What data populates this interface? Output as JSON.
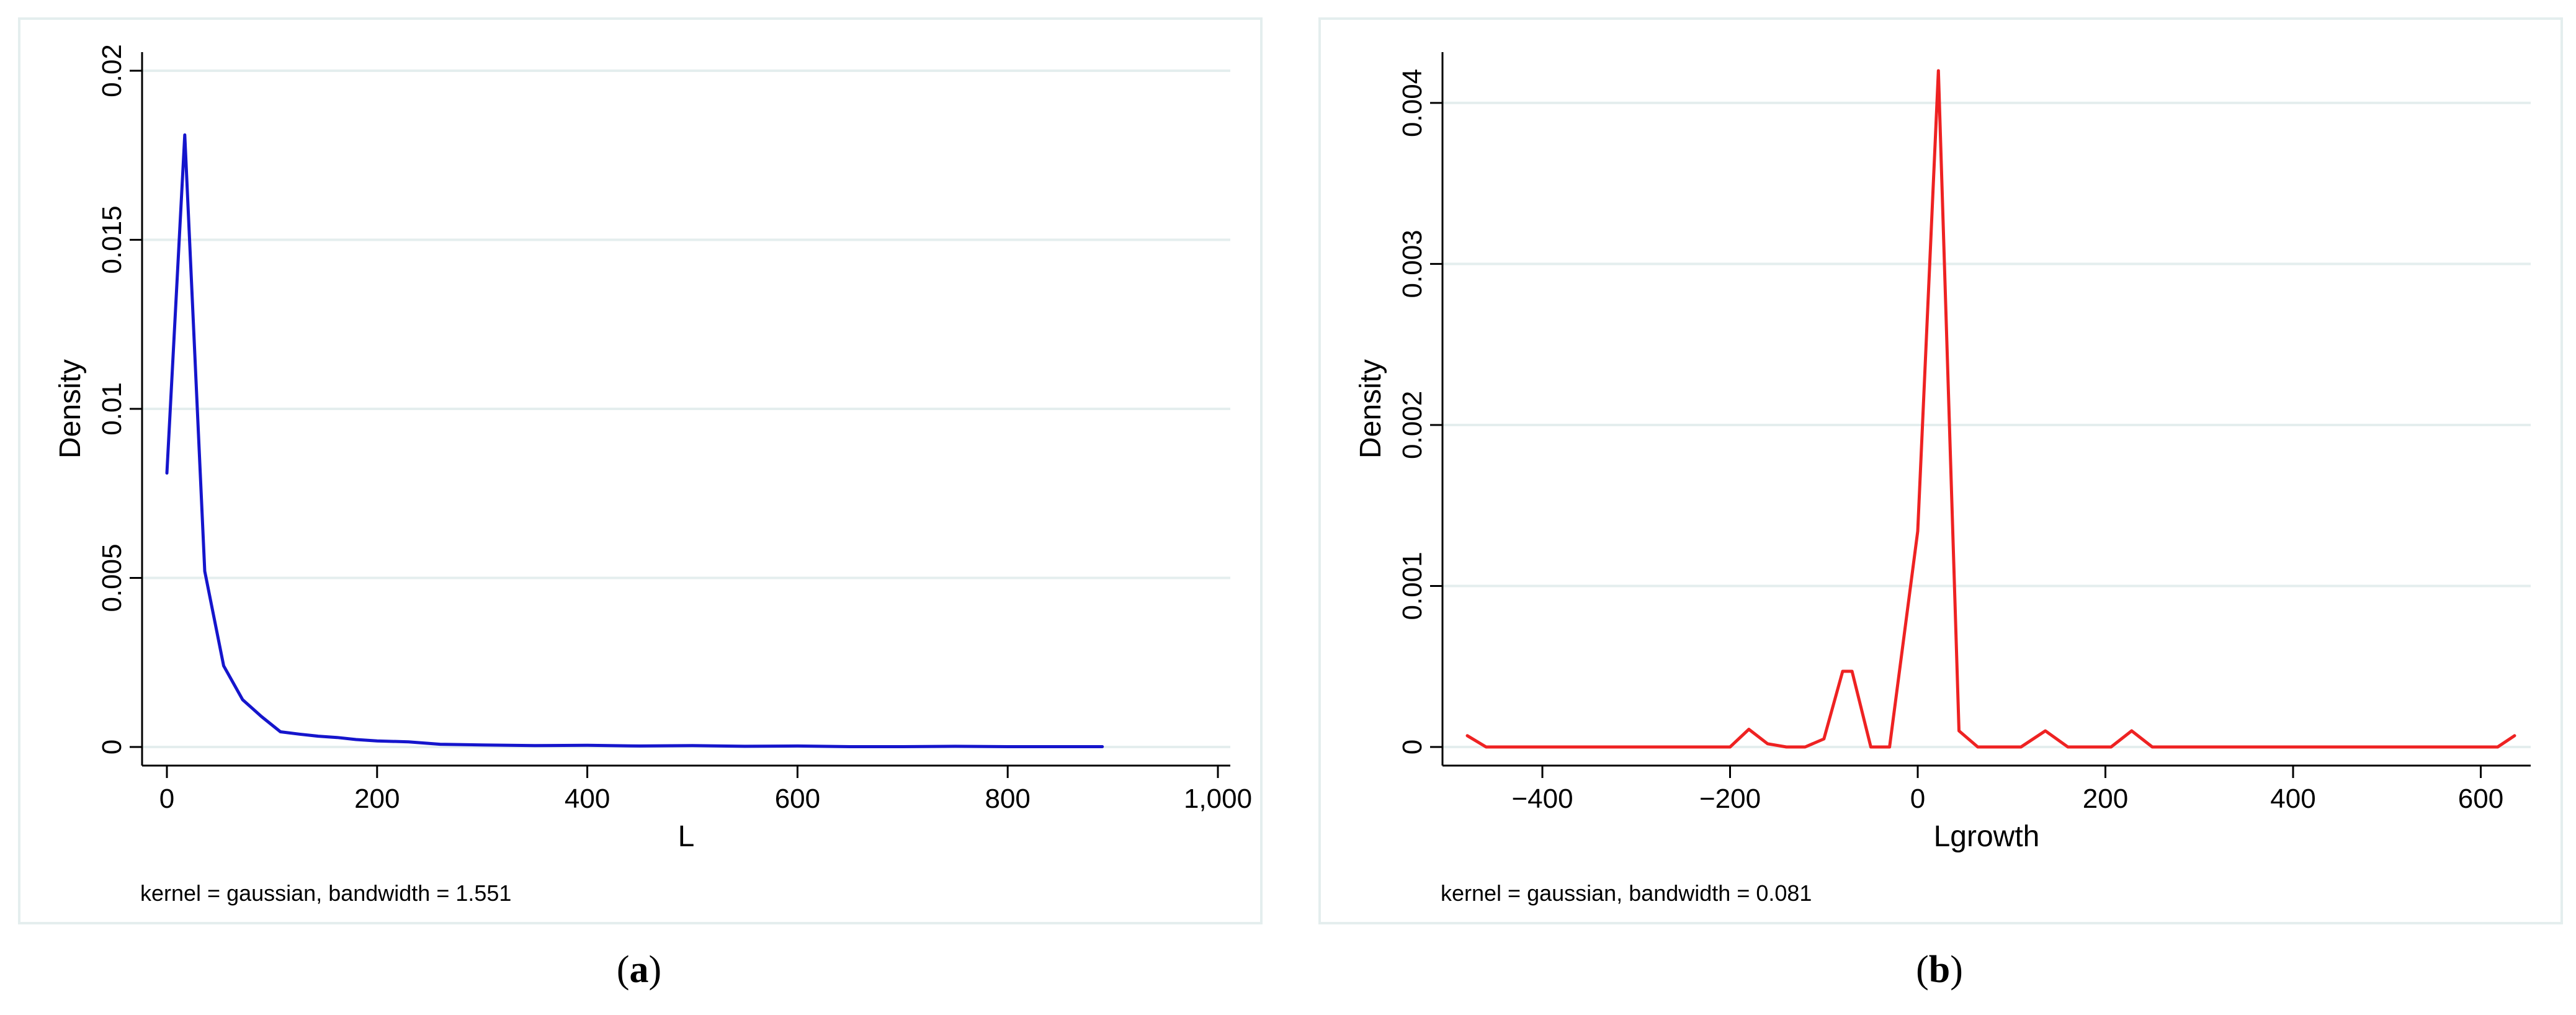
{
  "chart_data": [
    {
      "id": "a",
      "type": "line",
      "title": "",
      "xlabel": "L",
      "ylabel": "Density",
      "note": "kernel = gaussian, bandwidth = 1.551",
      "caption": "a",
      "xlim": [
        0,
        1000
      ],
      "ylim": [
        0,
        0.02
      ],
      "xticks": [
        0,
        200,
        400,
        600,
        800,
        1000
      ],
      "xtick_labels": [
        "0",
        "200",
        "400",
        "600",
        "800",
        "1,000"
      ],
      "yticks": [
        0,
        0.005,
        0.01,
        0.015,
        0.02
      ],
      "ytick_labels": [
        "0",
        "0.005",
        "0.01",
        "0.015",
        "0.02"
      ],
      "grid": true,
      "color": "#1515cc",
      "series": [
        {
          "x": [
            0,
            17,
            36,
            54,
            72,
            90,
            108,
            126,
            144,
            162,
            180,
            200,
            230,
            260,
            300,
            350,
            400,
            450,
            500,
            550,
            600,
            650,
            700,
            750,
            800,
            850,
            890
          ],
          "y": [
            0.0081,
            0.0181,
            0.0052,
            0.0024,
            0.0014,
            0.0009,
            0.00045,
            0.00038,
            0.00032,
            0.00028,
            0.00022,
            0.00018,
            0.00015,
            8e-05,
            6e-05,
            4e-05,
            5e-05,
            3e-05,
            4e-05,
            2e-05,
            3e-05,
            1e-05,
            1e-05,
            2e-05,
            1e-05,
            1e-05,
            1e-05
          ]
        }
      ]
    },
    {
      "id": "b",
      "type": "line",
      "title": "",
      "xlabel": "Lgrowth",
      "ylabel": "Density",
      "note": "kernel = gaussian, bandwidth = 0.081",
      "caption": "b",
      "xlim": [
        -480,
        640
      ],
      "ylim": [
        0,
        0.0042
      ],
      "xticks": [
        -400,
        -200,
        0,
        200,
        400,
        600
      ],
      "xtick_labels": [
        "−400",
        "−200",
        "0",
        "200",
        "400",
        "600"
      ],
      "yticks": [
        0,
        0.001,
        0.002,
        0.003,
        0.004
      ],
      "ytick_labels": [
        "0",
        "0.001",
        "0.002",
        "0.003",
        "0.004"
      ],
      "grid": true,
      "color": "#ee2222",
      "series": [
        {
          "x": [
            -480,
            -460,
            -440,
            -420,
            -400,
            -380,
            -360,
            -340,
            -320,
            -300,
            -280,
            -260,
            -240,
            -220,
            -200,
            -180,
            -160,
            -140,
            -120,
            -100,
            -80,
            -70,
            -50,
            -30,
            0,
            22,
            44,
            64,
            86,
            110,
            136,
            160,
            186,
            206,
            228,
            250,
            272,
            300,
            350,
            400,
            450,
            500,
            550,
            600,
            618,
            636
          ],
          "y": [
            7e-05,
            0.0,
            0.0,
            0.0,
            0.0,
            0.0,
            0.0,
            0.0,
            0.0,
            0.0,
            0.0,
            0.0,
            0.0,
            0.0,
            0.0,
            0.00011,
            2e-05,
            0.0,
            0.0,
            5e-05,
            0.00047,
            0.00047,
            0.0,
            0.0,
            0.00134,
            0.0042,
            0.0001,
            0.0,
            0.0,
            0.0,
            0.0001,
            0.0,
            0.0,
            0.0,
            0.0001,
            0.0,
            0.0,
            0.0,
            0.0,
            0.0,
            0.0,
            0.0,
            0.0,
            0.0,
            0.0,
            7e-05
          ]
        }
      ]
    }
  ]
}
